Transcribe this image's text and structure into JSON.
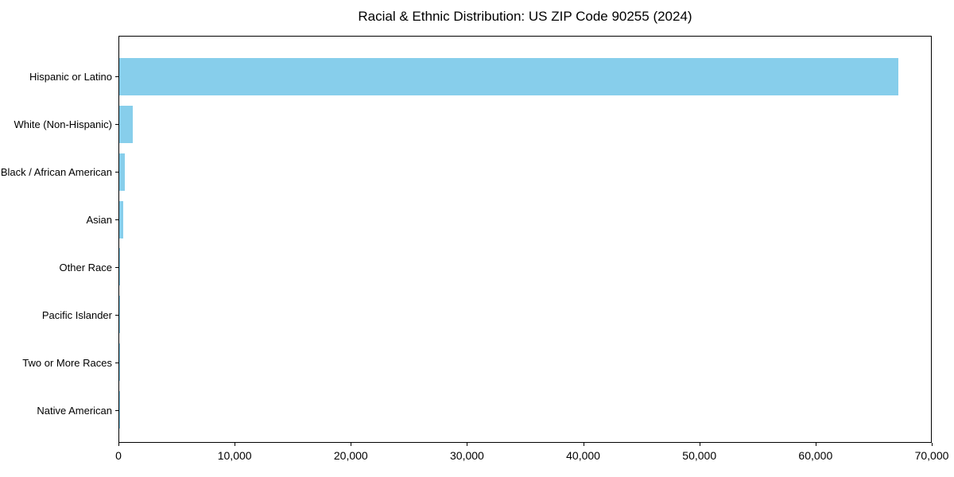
{
  "chart_data": {
    "type": "bar",
    "orientation": "horizontal",
    "title": "Racial & Ethnic Distribution: US ZIP Code 90255 (2024)",
    "categories": [
      "Hispanic or Latino",
      "White (Non-Hispanic)",
      "Black / African American",
      "Asian",
      "Other Race",
      "Pacific Islander",
      "Two or More Races",
      "Native American"
    ],
    "values": [
      67200,
      1150,
      470,
      350,
      90,
      60,
      50,
      40
    ],
    "xlabel": "",
    "ylabel": "",
    "xlim": [
      0,
      70000
    ],
    "x_ticks": [
      0,
      10000,
      20000,
      30000,
      40000,
      50000,
      60000,
      70000
    ],
    "x_tick_labels": [
      "0",
      "10,000",
      "20,000",
      "30,000",
      "40,000",
      "50,000",
      "60,000",
      "70,000"
    ],
    "grid": false,
    "legend": null,
    "bar_color": "#87CEEB"
  },
  "colors": {
    "bar": "#87CEEB",
    "axis": "#000000",
    "background": "#FFFFFF",
    "text": "#000000"
  }
}
